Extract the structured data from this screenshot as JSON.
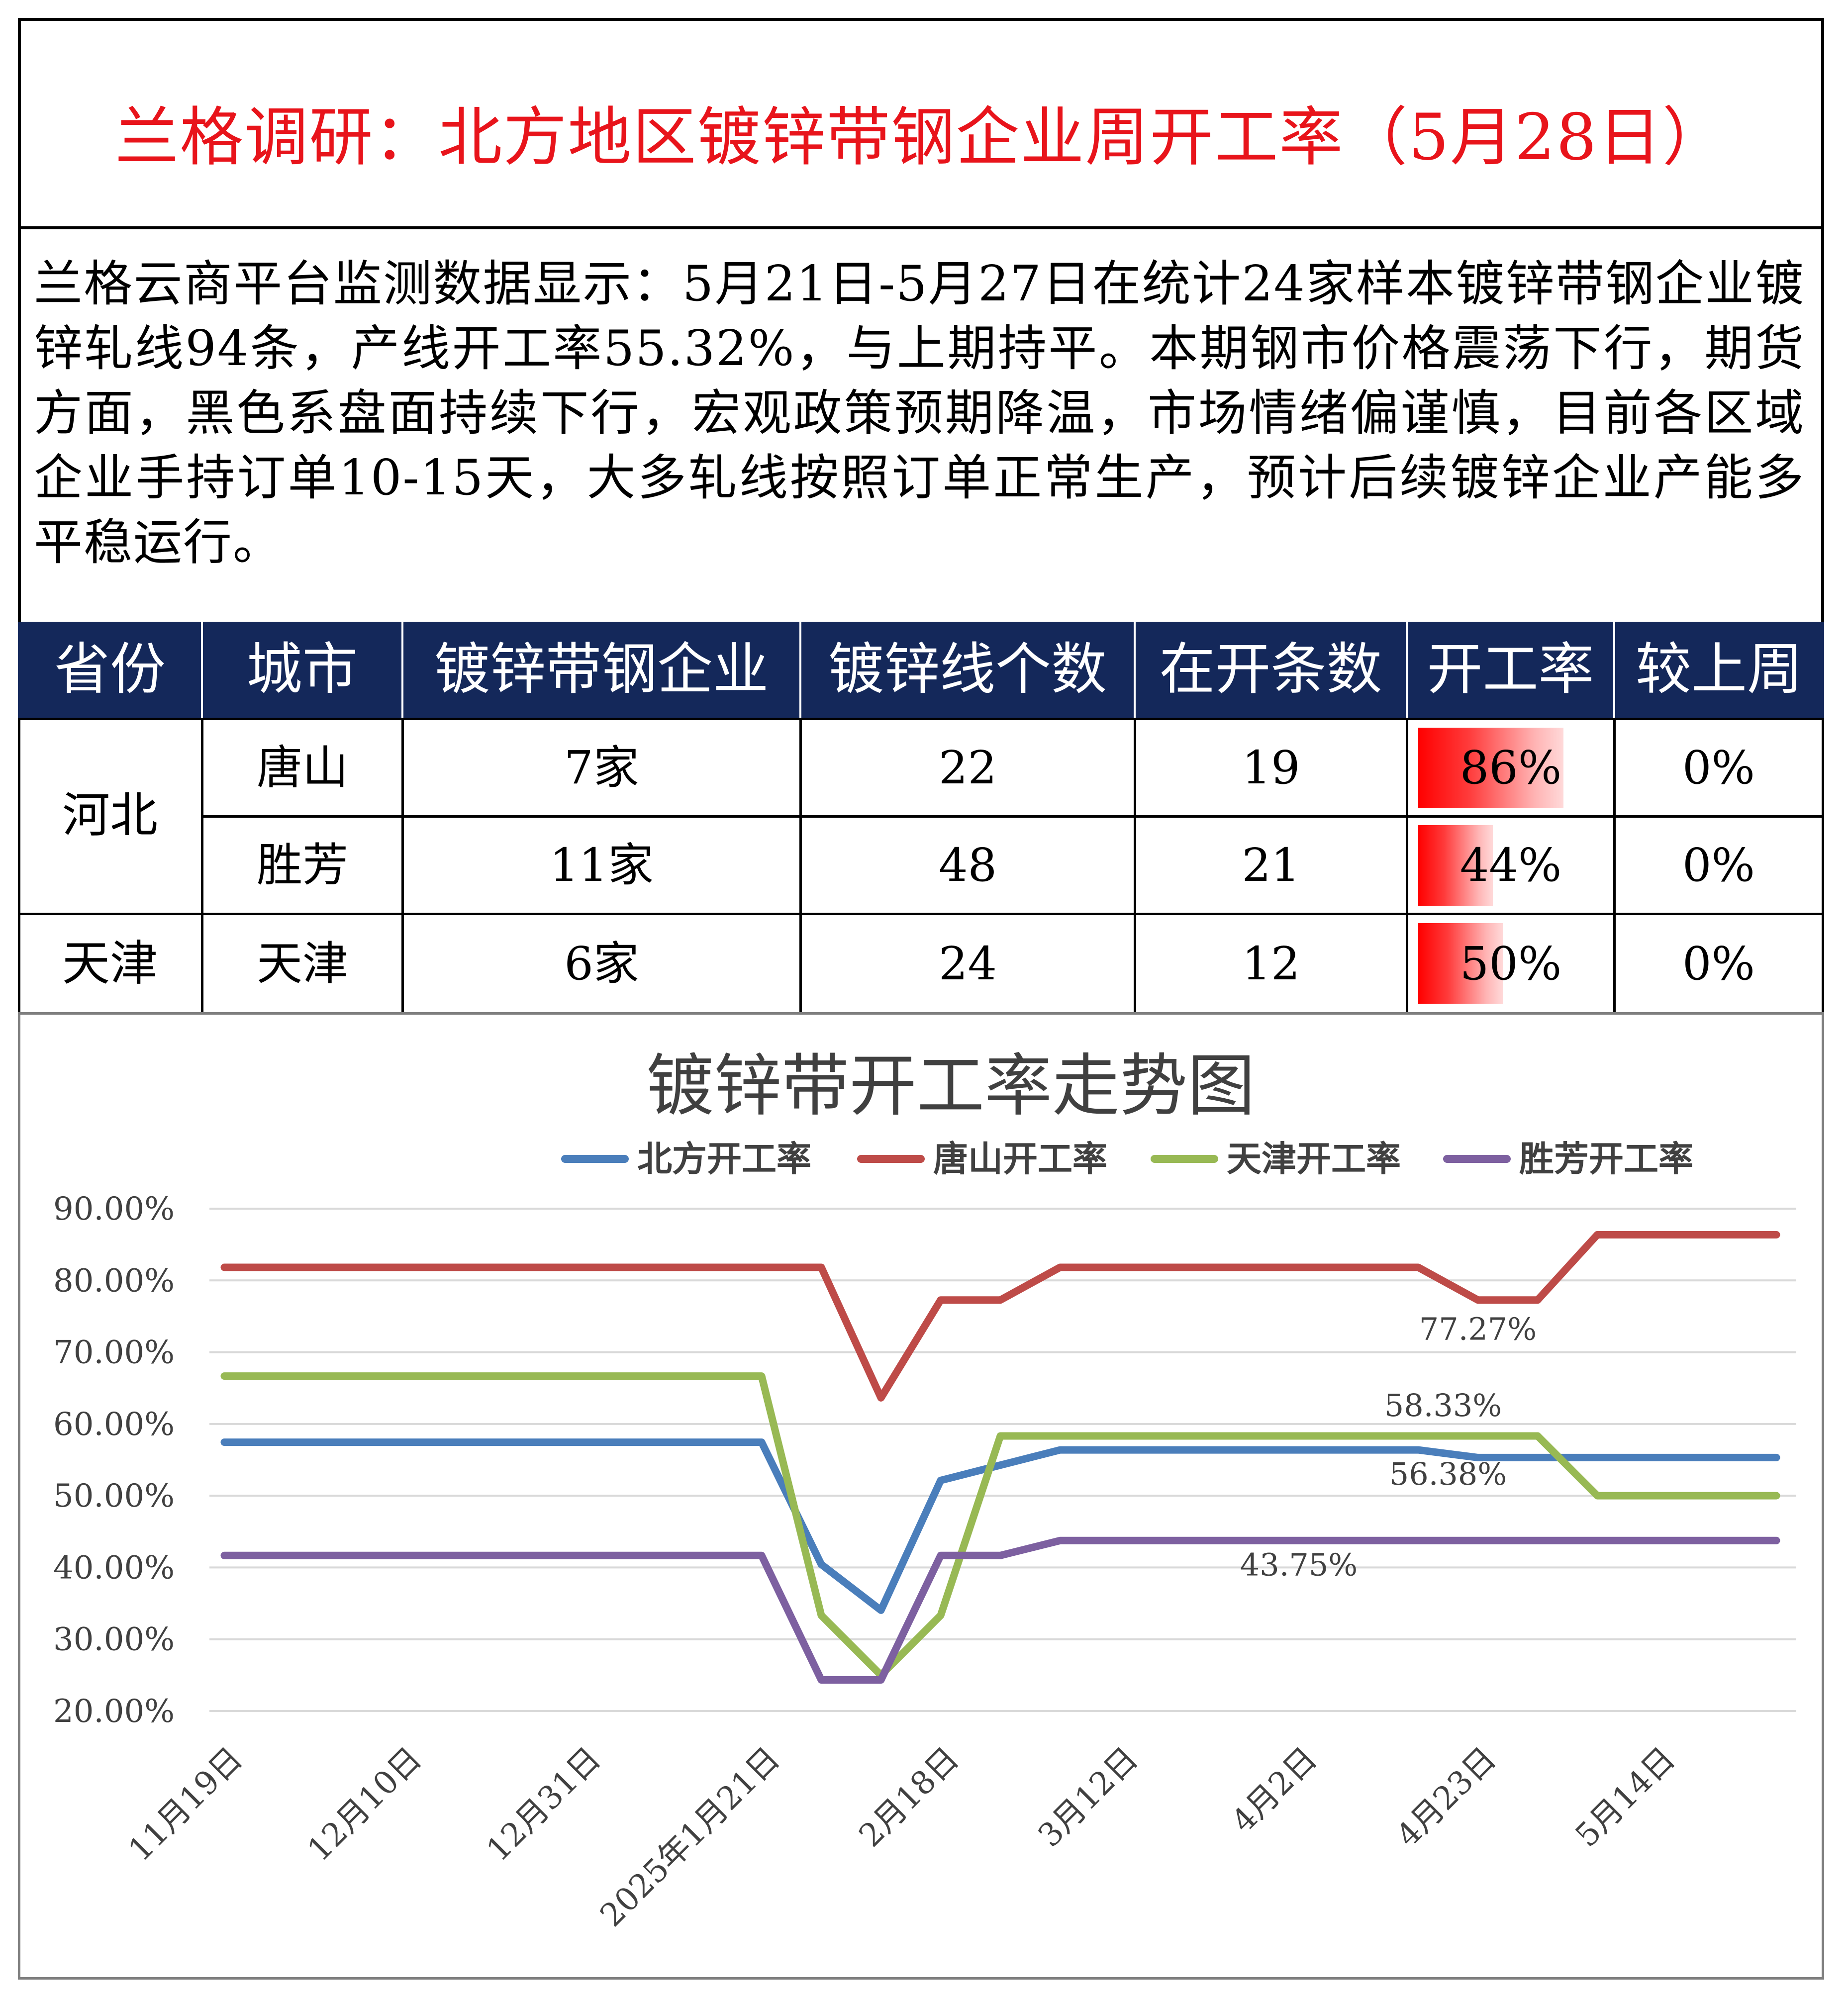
{
  "title": "兰格调研：北方地区镀锌带钢企业周开工率（5月28日）",
  "summary": "兰格云商平台监测数据显示：5月21日-5月27日在统计24家样本镀锌带钢企业镀锌轧线94条，产线开工率55.32%，与上期持平。本期钢市价格震荡下行，期货方面，黑色系盘面持续下行，宏观政策预期降温，市场情绪偏谨慎，目前各区域企业手持订单10-15天，大多轧线按照订单正常生产，预计后续镀锌企业产能多平稳运行。",
  "table": {
    "headers": [
      "省份",
      "城市",
      "镀锌带钢企业",
      "镀锌线个数",
      "在开条数",
      "开工率",
      "较上周"
    ],
    "header_bg": "#14285a",
    "bar_color": "#ff0000",
    "provinces": [
      "河北",
      "天津"
    ],
    "rows": [
      {
        "city": "唐山",
        "companies": "7家",
        "lines": "22",
        "running": "19",
        "rate": "86%",
        "rate_value": 0.86,
        "change": "0%"
      },
      {
        "city": "胜芳",
        "companies": "11家",
        "lines": "48",
        "running": "21",
        "rate": "44%",
        "rate_value": 0.44,
        "change": "0%"
      },
      {
        "city": "天津",
        "companies": "6家",
        "lines": "24",
        "running": "12",
        "rate": "50%",
        "rate_value": 0.5,
        "change": "0%"
      }
    ]
  },
  "chart_data": {
    "type": "line",
    "title": "镀锌带开工率走势图",
    "legend_position": "top-right",
    "grid": true,
    "ylim": [
      0.2,
      0.9
    ],
    "y_ticks": [
      "20.00%",
      "30.00%",
      "40.00%",
      "50.00%",
      "60.00%",
      "70.00%",
      "80.00%",
      "90.00%"
    ],
    "x_tick_labels": [
      "11月19日",
      "12月10日",
      "12月31日",
      "2025年1月21日",
      "2月18日",
      "3月12日",
      "4月2日",
      "4月23日",
      "5月14日"
    ],
    "x_tick_weeks": [
      0,
      3,
      6,
      9,
      12,
      15,
      18,
      21,
      24
    ],
    "x": [
      "11月19日",
      "11月26日",
      "12月3日",
      "12月10日",
      "12月17日",
      "12月24日",
      "12月31日",
      "1月7日",
      "1月14日",
      "2025年1月21日",
      "2月4日",
      "2月11日",
      "2月18日",
      "2月25日",
      "3月4日",
      "3月12日",
      "3月18日",
      "3月25日",
      "4月2日",
      "4月8日",
      "4月15日",
      "4月23日",
      "4月29日",
      "5月6日",
      "5月14日",
      "5月20日",
      "5月27日"
    ],
    "x_week_index": [
      0,
      1,
      2,
      3,
      4,
      5,
      6,
      7,
      8,
      9,
      10,
      11,
      12,
      13,
      14,
      15,
      16,
      17,
      18,
      19,
      20,
      21,
      22,
      23,
      24,
      25,
      26
    ],
    "series": [
      {
        "name": "北方开工率",
        "color": "#4a7ebb",
        "values": [
          0.5745,
          0.5745,
          0.5745,
          0.5745,
          0.5745,
          0.5745,
          0.5745,
          0.5745,
          0.5745,
          0.5745,
          0.4043,
          0.3404,
          0.5213,
          0.5426,
          0.5638,
          0.5638,
          0.5638,
          0.5638,
          0.5638,
          0.5638,
          0.5638,
          0.5532,
          0.5532,
          0.5532,
          0.5532,
          0.5532,
          0.5532
        ]
      },
      {
        "name": "唐山开工率",
        "color": "#be4b48",
        "values": [
          0.8182,
          0.8182,
          0.8182,
          0.8182,
          0.8182,
          0.8182,
          0.8182,
          0.8182,
          0.8182,
          0.8182,
          0.8182,
          0.6364,
          0.7727,
          0.7727,
          0.8182,
          0.8182,
          0.8182,
          0.8182,
          0.8182,
          0.8182,
          0.8182,
          0.7727,
          0.7727,
          0.8636,
          0.8636,
          0.8636,
          0.8636
        ]
      },
      {
        "name": "天津开工率",
        "color": "#98b954",
        "values": [
          0.6667,
          0.6667,
          0.6667,
          0.6667,
          0.6667,
          0.6667,
          0.6667,
          0.6667,
          0.6667,
          0.6667,
          0.3333,
          0.25,
          0.3333,
          0.5833,
          0.5833,
          0.5833,
          0.5833,
          0.5833,
          0.5833,
          0.5833,
          0.5833,
          0.5833,
          0.5833,
          0.5,
          0.5,
          0.5,
          0.5
        ]
      },
      {
        "name": "胜芳开工率",
        "color": "#7d60a0",
        "values": [
          0.4167,
          0.4167,
          0.4167,
          0.4167,
          0.4167,
          0.4167,
          0.4167,
          0.4167,
          0.4167,
          0.4167,
          0.2433,
          0.2433,
          0.4167,
          0.4167,
          0.4375,
          0.4375,
          0.4375,
          0.4375,
          0.4375,
          0.4375,
          0.4375,
          0.4375,
          0.4375,
          0.4375,
          0.4375,
          0.4375,
          0.4375
        ]
      }
    ],
    "annotations": [
      {
        "text": "77.27%",
        "week": 21,
        "value": 0.7727
      },
      {
        "text": "58.33%",
        "week": 20.5,
        "value": 0.5833
      },
      {
        "text": "56.38%",
        "week": 20.5,
        "value": 0.5638
      },
      {
        "text": "43.75%",
        "week": 18.0,
        "value": 0.4375
      }
    ]
  }
}
